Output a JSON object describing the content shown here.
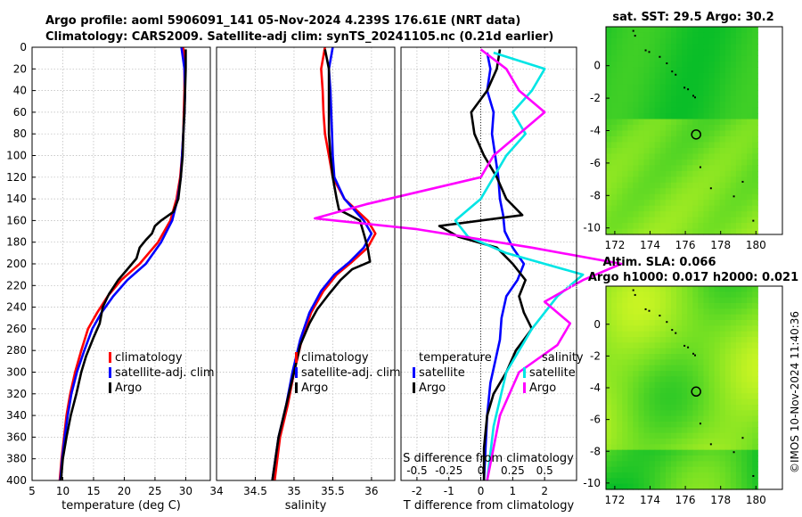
{
  "header": {
    "title_line1": "Argo profile: aoml 5906091_141 05-Nov-2024 4.239S 176.61E (NRT data)",
    "title_line2": "Climatology: CARS2009. Satellite-adj clim: synTS_20241105.nc (0.21d earlier)",
    "watermark": "©IMOS 10-Nov-2024 11:40:36"
  },
  "colors": {
    "climatology": "#ff0000",
    "satellite": "#0000ff",
    "argo": "#000000",
    "sal_satellite": "#00e5e5",
    "sal_argo": "#ff00ff",
    "grid": "#b0b0b0"
  },
  "chart_data": [
    {
      "id": "temperature",
      "type": "line",
      "xlabel": "temperature (deg C)",
      "ylabel": "depth",
      "xlim": [
        5,
        34
      ],
      "ylim": [
        0,
        400
      ],
      "xticks": [
        5,
        10,
        15,
        20,
        25,
        30
      ],
      "yticks": [
        0,
        20,
        40,
        60,
        80,
        100,
        120,
        140,
        160,
        180,
        200,
        220,
        240,
        260,
        280,
        300,
        320,
        340,
        360,
        380,
        400
      ],
      "legend": [
        "climatology",
        "satellite-adj. clim",
        "Argo"
      ],
      "series": [
        {
          "name": "climatology",
          "color": "#ff0000",
          "points": [
            [
              29.6,
              0
            ],
            [
              29.8,
              20
            ],
            [
              29.8,
              40
            ],
            [
              29.7,
              60
            ],
            [
              29.6,
              80
            ],
            [
              29.4,
              100
            ],
            [
              29.1,
              120
            ],
            [
              28.5,
              140
            ],
            [
              27.5,
              160
            ],
            [
              25.5,
              180
            ],
            [
              22.5,
              200
            ],
            [
              19.5,
              215
            ],
            [
              17.3,
              230
            ],
            [
              15.6,
              245
            ],
            [
              14.1,
              260
            ],
            [
              13,
              280
            ],
            [
              12,
              300
            ],
            [
              11.2,
              320
            ],
            [
              10.6,
              340
            ],
            [
              10.2,
              360
            ],
            [
              9.8,
              380
            ],
            [
              9.5,
              400
            ]
          ]
        },
        {
          "name": "satellite-adj. clim",
          "color": "#0000ff",
          "points": [
            [
              29.3,
              0
            ],
            [
              29.8,
              20
            ],
            [
              29.9,
              40
            ],
            [
              29.8,
              60
            ],
            [
              29.6,
              80
            ],
            [
              29.4,
              100
            ],
            [
              29.2,
              120
            ],
            [
              28.7,
              140
            ],
            [
              27.8,
              160
            ],
            [
              26,
              180
            ],
            [
              23.5,
              200
            ],
            [
              20.5,
              215
            ],
            [
              18.2,
              230
            ],
            [
              16.3,
              245
            ],
            [
              14.8,
              260
            ],
            [
              13.5,
              280
            ],
            [
              12.3,
              300
            ],
            [
              11.4,
              320
            ],
            [
              10.8,
              340
            ],
            [
              10.3,
              360
            ],
            [
              9.9,
              380
            ],
            [
              9.6,
              400
            ]
          ]
        },
        {
          "name": "Argo",
          "color": "#000000",
          "points": [
            [
              30,
              2
            ],
            [
              30,
              20
            ],
            [
              29.9,
              40
            ],
            [
              29.8,
              60
            ],
            [
              29.6,
              80
            ],
            [
              29.5,
              100
            ],
            [
              29.2,
              120
            ],
            [
              28.8,
              140
            ],
            [
              28,
              152
            ],
            [
              26,
              160
            ],
            [
              25,
              165
            ],
            [
              24.5,
              172
            ],
            [
              23.5,
              178
            ],
            [
              22.5,
              185
            ],
            [
              22,
              195
            ],
            [
              20.5,
              205
            ],
            [
              19,
              215
            ],
            [
              17.5,
              228
            ],
            [
              16.5,
              240
            ],
            [
              16,
              255
            ],
            [
              15,
              268
            ],
            [
              13.8,
              285
            ],
            [
              13,
              300
            ],
            [
              12.2,
              320
            ],
            [
              11.3,
              340
            ],
            [
              10.6,
              360
            ],
            [
              10,
              380
            ],
            [
              9.7,
              400
            ]
          ]
        }
      ]
    },
    {
      "id": "salinity",
      "type": "line",
      "xlabel": "salinity",
      "ylabel": "",
      "xlim": [
        34,
        36.3
      ],
      "ylim": [
        0,
        400
      ],
      "xticks": [
        34,
        34.5,
        35,
        35.5,
        36
      ],
      "legend": [
        "climatology",
        "satellite-adj. clim",
        "Argo"
      ],
      "series": [
        {
          "name": "climatology",
          "color": "#ff0000",
          "points": [
            [
              35.4,
              0
            ],
            [
              35.35,
              20
            ],
            [
              35.37,
              40
            ],
            [
              35.38,
              60
            ],
            [
              35.4,
              80
            ],
            [
              35.45,
              100
            ],
            [
              35.5,
              120
            ],
            [
              35.65,
              140
            ],
            [
              35.95,
              160
            ],
            [
              36.05,
              172
            ],
            [
              35.95,
              185
            ],
            [
              35.75,
              198
            ],
            [
              35.55,
              210
            ],
            [
              35.38,
              225
            ],
            [
              35.22,
              245
            ],
            [
              35.1,
              270
            ],
            [
              35,
              300
            ],
            [
              34.92,
              330
            ],
            [
              34.82,
              360
            ],
            [
              34.75,
              400
            ]
          ]
        },
        {
          "name": "satellite-adj. clim",
          "color": "#0000ff",
          "points": [
            [
              35.5,
              0
            ],
            [
              35.45,
              20
            ],
            [
              35.47,
              40
            ],
            [
              35.48,
              60
            ],
            [
              35.49,
              80
            ],
            [
              35.5,
              100
            ],
            [
              35.52,
              120
            ],
            [
              35.65,
              140
            ],
            [
              35.9,
              160
            ],
            [
              36,
              172
            ],
            [
              35.9,
              185
            ],
            [
              35.72,
              198
            ],
            [
              35.52,
              210
            ],
            [
              35.35,
              225
            ],
            [
              35.2,
              245
            ],
            [
              35.08,
              270
            ],
            [
              34.98,
              300
            ],
            [
              34.9,
              330
            ],
            [
              34.8,
              360
            ],
            [
              34.72,
              400
            ]
          ]
        },
        {
          "name": "Argo",
          "color": "#000000",
          "points": [
            [
              35.4,
              2
            ],
            [
              35.45,
              20
            ],
            [
              35.45,
              40
            ],
            [
              35.45,
              60
            ],
            [
              35.45,
              80
            ],
            [
              35.47,
              100
            ],
            [
              35.5,
              120
            ],
            [
              35.55,
              140
            ],
            [
              35.58,
              150
            ],
            [
              35.85,
              160
            ],
            [
              35.9,
              172
            ],
            [
              35.95,
              185
            ],
            [
              35.98,
              198
            ],
            [
              35.75,
              205
            ],
            [
              35.6,
              215
            ],
            [
              35.45,
              228
            ],
            [
              35.3,
              242
            ],
            [
              35.2,
              255
            ],
            [
              35.08,
              275
            ],
            [
              35,
              300
            ],
            [
              34.9,
              330
            ],
            [
              34.8,
              360
            ],
            [
              34.72,
              400
            ]
          ]
        }
      ]
    },
    {
      "id": "difference",
      "type": "line",
      "xlabel": "T difference from climatology",
      "top_xlabel": "S difference from climatology",
      "xlim": [
        -2.5,
        3
      ],
      "xticks": [
        -2,
        -1,
        0,
        1,
        2
      ],
      "top_ticks": [
        {
          "v": -0.5,
          "label": "-0.5"
        },
        {
          "v": -0.25,
          "label": "-0.25"
        },
        {
          "v": 0,
          "label": "0"
        },
        {
          "v": 0.25,
          "label": "0.25"
        },
        {
          "v": 0.5,
          "label": "0.5"
        }
      ],
      "s_scale": 4,
      "ylim": [
        0,
        400
      ],
      "legend_titles": [
        "temperature",
        "salinity"
      ],
      "legend_left": [
        "satellite",
        "Argo"
      ],
      "legend_right": [
        "satellite",
        "Argo"
      ],
      "series": [
        {
          "name": "T satellite",
          "color": "#0000ff",
          "points": [
            [
              0.2,
              5
            ],
            [
              0.3,
              20
            ],
            [
              0.2,
              40
            ],
            [
              0.4,
              60
            ],
            [
              0.35,
              80
            ],
            [
              0.45,
              100
            ],
            [
              0.55,
              120
            ],
            [
              0.6,
              140
            ],
            [
              0.7,
              155
            ],
            [
              0.75,
              170
            ],
            [
              1,
              185
            ],
            [
              1.35,
              200
            ],
            [
              1.15,
              215
            ],
            [
              0.8,
              230
            ],
            [
              0.65,
              250
            ],
            [
              0.6,
              270
            ],
            [
              0.45,
              290
            ],
            [
              0.3,
              310
            ],
            [
              0.2,
              340
            ],
            [
              0.15,
              370
            ],
            [
              0.1,
              400
            ]
          ]
        },
        {
          "name": "T Argo",
          "color": "#000000",
          "points": [
            [
              0.6,
              2
            ],
            [
              0.5,
              20
            ],
            [
              0.2,
              40
            ],
            [
              -0.3,
              60
            ],
            [
              -0.2,
              80
            ],
            [
              0.1,
              100
            ],
            [
              0.5,
              120
            ],
            [
              0.8,
              140
            ],
            [
              1.3,
              155
            ],
            [
              -1.3,
              165
            ],
            [
              -0.7,
              175
            ],
            [
              0.5,
              185
            ],
            [
              1,
              200
            ],
            [
              1.4,
              215
            ],
            [
              1.2,
              230
            ],
            [
              1.35,
              245
            ],
            [
              1.6,
              260
            ],
            [
              1.1,
              280
            ],
            [
              0.8,
              300
            ],
            [
              0.4,
              320
            ],
            [
              0.2,
              340
            ],
            [
              0.1,
              370
            ],
            [
              0.1,
              400
            ]
          ]
        },
        {
          "name": "S satellite",
          "color": "#00e5e5",
          "points": [
            [
              0.1,
              5
            ],
            [
              0.5,
              20
            ],
            [
              0.4,
              40
            ],
            [
              0.25,
              60
            ],
            [
              0.35,
              80
            ],
            [
              0.2,
              100
            ],
            [
              0.1,
              120
            ],
            [
              0,
              140
            ],
            [
              -0.2,
              160
            ],
            [
              -0.1,
              175
            ],
            [
              0.2,
              190
            ],
            [
              0.5,
              200
            ],
            [
              0.8,
              210
            ],
            [
              0.6,
              230
            ],
            [
              0.4,
              260
            ],
            [
              0.2,
              300
            ],
            [
              0.1,
              350
            ],
            [
              0.05,
              400
            ]
          ]
        },
        {
          "name": "S Argo",
          "color": "#ff00ff",
          "points": [
            [
              0,
              2
            ],
            [
              0.2,
              20
            ],
            [
              0.3,
              40
            ],
            [
              0.5,
              60
            ],
            [
              0.3,
              80
            ],
            [
              0.1,
              100
            ],
            [
              0,
              120
            ],
            [
              -0.9,
              145
            ],
            [
              -1.3,
              158
            ],
            [
              -0.5,
              168
            ],
            [
              0.4,
              185
            ],
            [
              1.1,
              200
            ],
            [
              0.8,
              215
            ],
            [
              0.5,
              235
            ],
            [
              0.7,
              255
            ],
            [
              0.6,
              275
            ],
            [
              0.3,
              300
            ],
            [
              0.15,
              340
            ],
            [
              0.05,
              400
            ]
          ]
        }
      ]
    },
    {
      "id": "sst_map",
      "type": "heatmap",
      "title": "sat. SST: 29.5 Argo: 30.2",
      "xticks": [
        172,
        174,
        176,
        178,
        180
      ],
      "yticks": [
        0,
        -2,
        -4,
        -6,
        -8,
        -10
      ],
      "xlim": [
        171.5,
        181.5
      ],
      "ylim": [
        -10.4,
        2.4
      ],
      "argo_lon": 176.61,
      "argo_lat": -4.239
    },
    {
      "id": "sla_map",
      "type": "heatmap",
      "title1": "Altim. SLA: 0.066",
      "title2": "Argo h1000: 0.017 h2000: 0.021",
      "xticks": [
        172,
        174,
        176,
        178,
        180
      ],
      "yticks": [
        0,
        -2,
        -4,
        -6,
        -8,
        -10
      ],
      "xlim": [
        171.5,
        181.5
      ],
      "ylim": [
        -10.4,
        2.4
      ],
      "argo_lon": 176.61,
      "argo_lat": -4.239
    }
  ]
}
